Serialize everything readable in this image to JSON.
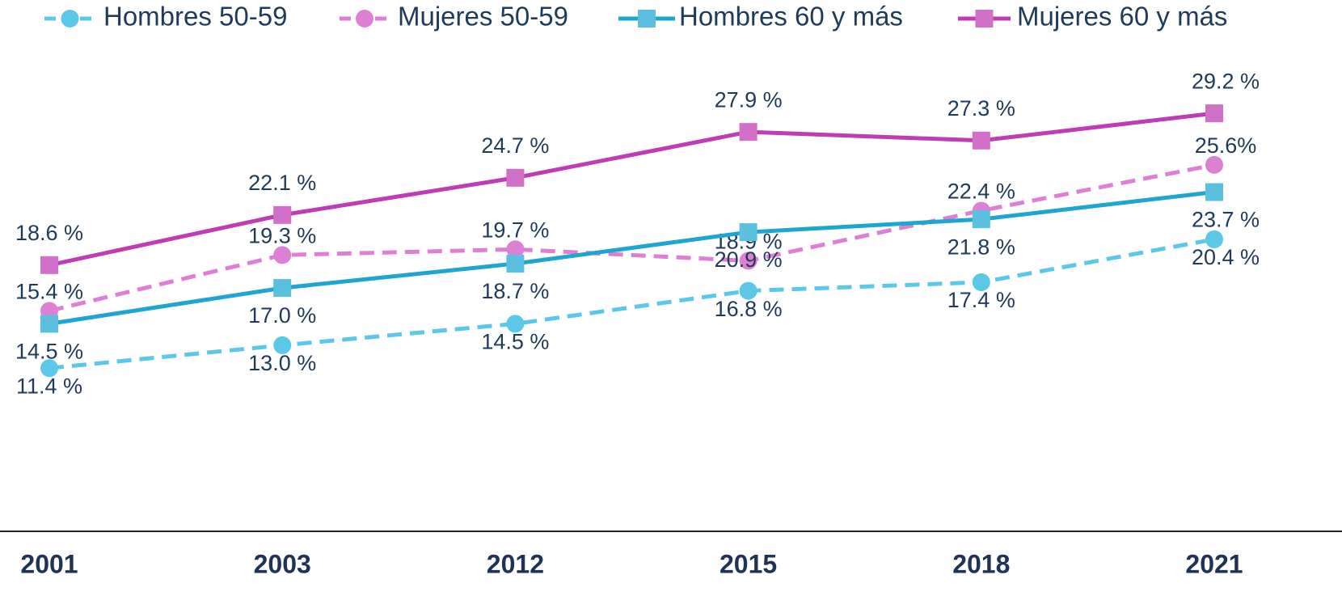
{
  "chart_data": {
    "type": "line",
    "categories": [
      "2001",
      "2003",
      "2012",
      "2015",
      "2018",
      "2021"
    ],
    "ylim": [
      0,
      35
    ],
    "series": [
      {
        "name": "Hombres 50-59",
        "color": "#5bc8e8",
        "dashed": true,
        "marker": "circle",
        "values": [
          11.4,
          13.0,
          14.5,
          16.8,
          17.4,
          20.4
        ],
        "value_labels": [
          "11.4 %",
          "13.0 %",
          "14.5 %",
          "16.8 %",
          "17.4 %",
          "20.4 %"
        ]
      },
      {
        "name": "Mujeres 50-59",
        "color": "#dd80d3",
        "dashed": true,
        "marker": "circle",
        "values": [
          15.4,
          19.3,
          19.7,
          18.9,
          22.4,
          25.6
        ],
        "value_labels": [
          "15.4 %",
          "19.3 %",
          "19.7 %",
          "18.9 %",
          "22.4 %",
          "25.6%"
        ]
      },
      {
        "name": "Hombres 60 y más",
        "color": "#1fa6d0",
        "dashed": false,
        "marker": "square",
        "values": [
          14.5,
          17.0,
          18.7,
          20.9,
          21.8,
          23.7
        ],
        "value_labels": [
          "14.5 %",
          "17.0 %",
          "18.7 %",
          "20.9 %",
          "21.8 %",
          "23.7 %"
        ]
      },
      {
        "name": "Mujeres 60 y más",
        "color": "#c03cb4",
        "dashed": false,
        "marker": "square",
        "values": [
          18.6,
          22.1,
          24.7,
          27.9,
          27.3,
          29.2
        ],
        "value_labels": [
          "18.6 %",
          "22.1 %",
          "24.7 %",
          "27.9 %",
          "27.3 %",
          "29.2 %"
        ]
      }
    ]
  }
}
